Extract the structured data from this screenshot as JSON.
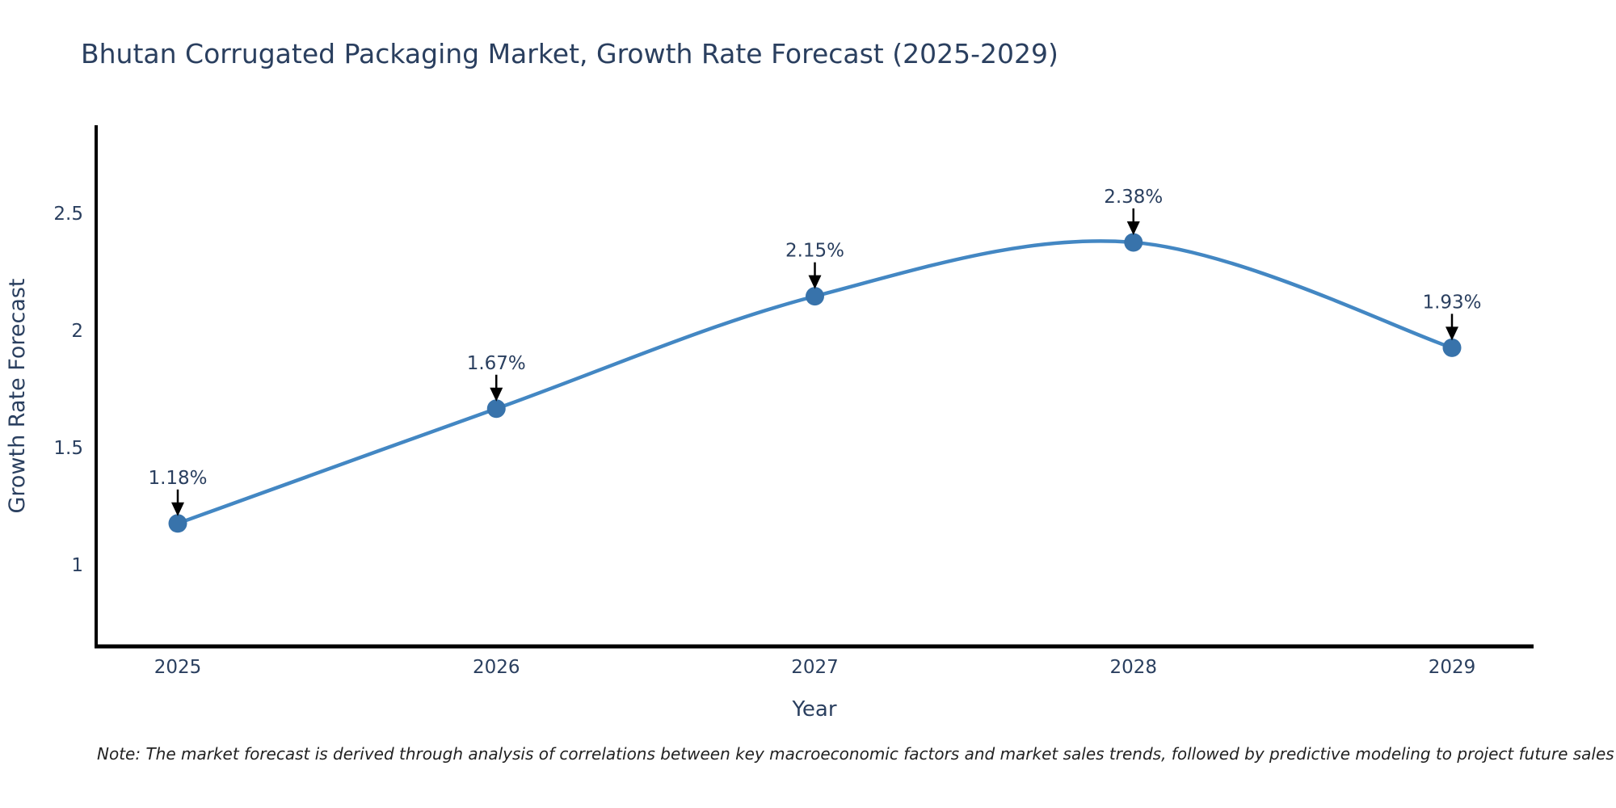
{
  "title": "Bhutan Corrugated Packaging Market, Growth Rate Forecast (2025-2029)",
  "note": "Note: The market forecast is derived through analysis of correlations between key macroeconomic factors and market sales trends, followed by predictive modeling to project future sales",
  "chart_data": {
    "type": "line",
    "title": "Bhutan Corrugated Packaging Market, Growth Rate Forecast (2025-2029)",
    "xlabel": "Year",
    "ylabel": "Growth Rate Forecast",
    "x": [
      "2025",
      "2026",
      "2027",
      "2028",
      "2029"
    ],
    "values": [
      1.18,
      1.67,
      2.15,
      2.38,
      1.93
    ],
    "point_labels": [
      "1.18%",
      "1.67%",
      "2.15%",
      "2.38%",
      "1.93%"
    ],
    "yticks": [
      1,
      1.5,
      2,
      2.5
    ],
    "ytick_labels": [
      "1",
      "1.5",
      "2",
      "2.5"
    ],
    "ylim": [
      0.655,
      2.88
    ],
    "grid": false,
    "line_shape": "spline",
    "legend": "none",
    "colors": {
      "line": "#4387c3",
      "marker": "#3873ab",
      "axis_line": "#000000",
      "text": "#2a3f5f",
      "arrow": "#000000",
      "note_text": "#222222",
      "background": "#ffffff"
    }
  }
}
